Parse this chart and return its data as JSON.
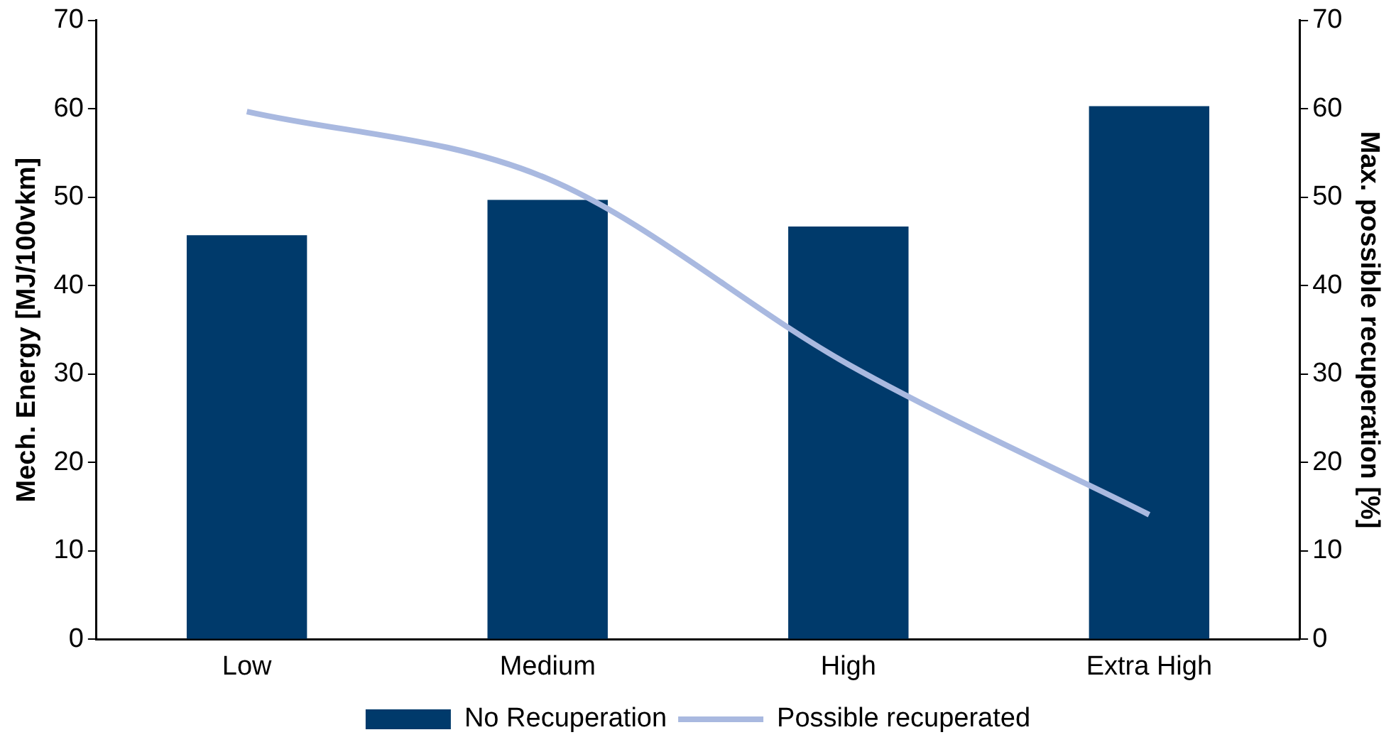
{
  "chart_data": {
    "type": "bar",
    "categories": [
      "Low",
      "Medium",
      "High",
      "Extra High"
    ],
    "ylabel": "Mech. Energy [MJ/100vkm]",
    "y2label": "Max. possible recuperation [%]",
    "ylim": [
      0,
      70
    ],
    "yticks": [
      0,
      10,
      20,
      30,
      40,
      50,
      60,
      70
    ],
    "y2lim": [
      0,
      70
    ],
    "y2ticks": [
      0,
      10,
      20,
      30,
      40,
      50,
      60,
      70
    ],
    "series": [
      {
        "name": "No Recuperation",
        "color": "#003a6b",
        "values": [
          45.7,
          49.7,
          46.7,
          60.3
        ]
      },
      {
        "name": "Possible recuperated",
        "type": "line",
        "axis": "y2",
        "color": "#a9b9e0",
        "values": [
          59.7,
          52.1,
          31.1,
          14.1
        ]
      }
    ],
    "grid": false,
    "legend": "bottom",
    "marker": "none",
    "line_style": "solid"
  }
}
